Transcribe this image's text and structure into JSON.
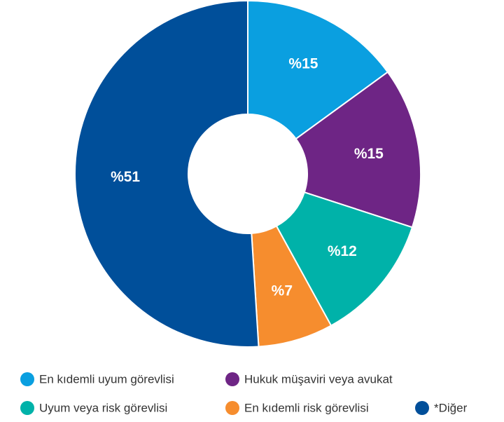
{
  "chart_data": {
    "type": "donut",
    "categories": [
      "En kıdemli uyum görevlisi",
      "Hukuk müşaviri veya avukat",
      "Uyum veya risk görevlisi",
      "En kıdemli risk görevlisi",
      "*Diğer"
    ],
    "values": [
      15,
      15,
      12,
      7,
      51
    ],
    "value_labels": [
      "%15",
      "%15",
      "%12",
      "%7",
      "%51"
    ],
    "colors": [
      "#0a9fe0",
      "#6e2585",
      "#00b2a9",
      "#f68d2e",
      "#004f9a"
    ]
  }
}
